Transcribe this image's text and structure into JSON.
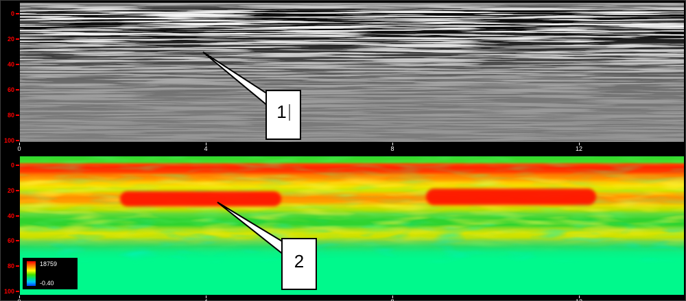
{
  "window": {
    "description": "GPR processing software display: grayscale radargram (top) and colorized amplitude section (bottom)",
    "background_color": "#000000"
  },
  "colors": {
    "depth_label": "#ff0000",
    "distance_label": "#ffffff",
    "panel_gray": "#8c8c8c",
    "panel_mint": "#00f98c",
    "strong_reflector_red": "#ff2600",
    "legend_background": "#000000"
  },
  "axes": {
    "depth_ticks": [
      "0",
      "20",
      "40",
      "60",
      "80",
      "100"
    ],
    "distance_ticks": [
      "0",
      "4",
      "8",
      "12"
    ]
  },
  "legend": {
    "max_value": "18759",
    "min_value": "-0.40"
  },
  "callouts": [
    {
      "label": "1",
      "caret": true
    },
    {
      "label": "2",
      "caret": false
    }
  ],
  "chart_data": [
    {
      "type": "heatmap",
      "title": "",
      "panel": "grayscale-radargram",
      "xlabel": "",
      "ylabel": "",
      "x_ticks": [
        0,
        4,
        8,
        12
      ],
      "x_range": [
        0,
        14.2
      ],
      "y_ticks": [
        0,
        20,
        40,
        60,
        80,
        100
      ],
      "y_range": [
        0,
        100
      ],
      "y_direction": "downward",
      "grid": false,
      "legend_position": "none",
      "content_summary": "Dense horizontal black/white reflection banding strongest between depth 5 and 45, wavy weaker reflectors to ~75, washing out to uniform gray below",
      "annotations": [
        {
          "label": "1",
          "target_x": 3.9,
          "target_y": 30,
          "note": "points to a strong shallow reflector"
        }
      ]
    },
    {
      "type": "heatmap",
      "title": "",
      "panel": "color-amplitude-section",
      "xlabel": "",
      "ylabel": "",
      "x_ticks": [
        0,
        4,
        8,
        12
      ],
      "x_range": [
        0,
        14.2
      ],
      "y_ticks": [
        0,
        20,
        40,
        60,
        80,
        100
      ],
      "y_range": [
        0,
        100
      ],
      "y_direction": "downward",
      "grid": false,
      "colorbar": {
        "max": 18759,
        "min": -0.4,
        "scale": [
          "red",
          "orange",
          "yellow",
          "green",
          "cyan",
          "blue"
        ]
      },
      "content_summary": "Continuous high-amplitude red band near depth 5-15, orange/yellow mottle to ~25, second strong red reflector segments near depth 28-38 (x~2-5.2 and x~8.7-12.2), green mottle below, uniform low-amplitude mint green beyond depth ~65",
      "annotations": [
        {
          "label": "2",
          "target_x": 4.25,
          "target_y": 29,
          "note": "points to the second strong amplitude band"
        }
      ]
    }
  ]
}
